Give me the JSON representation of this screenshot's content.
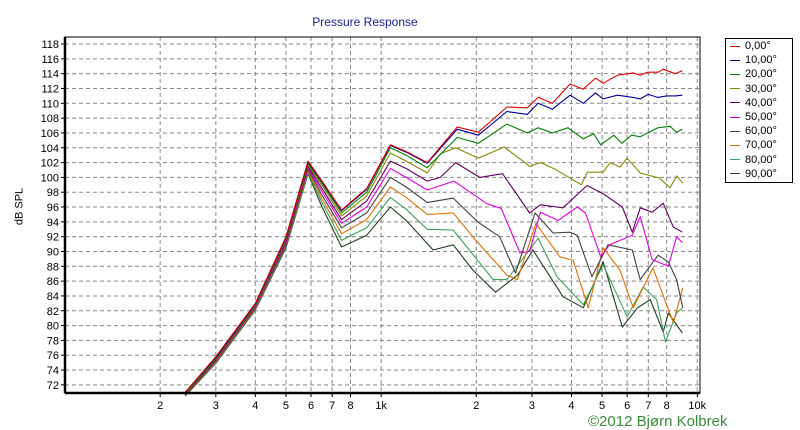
{
  "chart_data": {
    "type": "line",
    "title": "Pressure Response",
    "xlabel": "",
    "ylabel": "dB SPL",
    "xscale": "log",
    "xlim": [
      100,
      10200
    ],
    "ylim": [
      70.9,
      118.95
    ],
    "grid": true,
    "legend_position": "right",
    "yticks": [
      72,
      74,
      76,
      78,
      80,
      82,
      84,
      86,
      88,
      90,
      92,
      94,
      96,
      98,
      100,
      102,
      104,
      106,
      108,
      110,
      112,
      114,
      116,
      118
    ],
    "xticks": [
      {
        "value": 200,
        "label": "2"
      },
      {
        "value": 300,
        "label": "3"
      },
      {
        "value": 400,
        "label": "4"
      },
      {
        "value": 500,
        "label": "5"
      },
      {
        "value": 600,
        "label": "6"
      },
      {
        "value": 700,
        "label": "7"
      },
      {
        "value": 800,
        "label": "8"
      },
      {
        "value": 1000,
        "label": "1k"
      },
      {
        "value": 2000,
        "label": "2"
      },
      {
        "value": 3000,
        "label": "3"
      },
      {
        "value": 4000,
        "label": "4"
      },
      {
        "value": 5000,
        "label": "5"
      },
      {
        "value": 6000,
        "label": "6"
      },
      {
        "value": 7000,
        "label": "7"
      },
      {
        "value": 8000,
        "label": "8"
      },
      {
        "value": 10000,
        "label": "10k"
      }
    ],
    "series": [
      {
        "name": "0,00°",
        "color": "#e00000",
        "points": [
          [
            240,
            71
          ],
          [
            300,
            75.8
          ],
          [
            400,
            83
          ],
          [
            500,
            92
          ],
          [
            587,
            102.2
          ],
          [
            650,
            99.5
          ],
          [
            750,
            95.6
          ],
          [
            900,
            98.5
          ],
          [
            1070,
            104.4
          ],
          [
            1200,
            103.5
          ],
          [
            1400,
            102
          ],
          [
            1740,
            106.8
          ],
          [
            2030,
            106.1
          ],
          [
            2500,
            109.5
          ],
          [
            2900,
            109.4
          ],
          [
            3140,
            110.8
          ],
          [
            3480,
            110
          ],
          [
            3960,
            112.6
          ],
          [
            4360,
            111.9
          ],
          [
            4760,
            113.4
          ],
          [
            5040,
            112.7
          ],
          [
            5590,
            113.8
          ],
          [
            6270,
            114.1
          ],
          [
            6600,
            113.8
          ],
          [
            6950,
            114.2
          ],
          [
            7530,
            114.2
          ],
          [
            7800,
            114.6
          ],
          [
            8510,
            114
          ],
          [
            8970,
            114.4
          ]
        ]
      },
      {
        "name": "10,00°",
        "color": "#0000a0",
        "points": [
          [
            240,
            71
          ],
          [
            300,
            75.7
          ],
          [
            400,
            82.9
          ],
          [
            500,
            91.9
          ],
          [
            587,
            102.1
          ],
          [
            650,
            99.4
          ],
          [
            750,
            95.5
          ],
          [
            900,
            98.4
          ],
          [
            1070,
            104.3
          ],
          [
            1200,
            103.4
          ],
          [
            1400,
            101.9
          ],
          [
            1740,
            106.5
          ],
          [
            2030,
            105.7
          ],
          [
            2500,
            108.9
          ],
          [
            2900,
            108.5
          ],
          [
            3140,
            110
          ],
          [
            3480,
            109.2
          ],
          [
            3960,
            111.1
          ],
          [
            4360,
            110
          ],
          [
            4760,
            111.4
          ],
          [
            5040,
            110.6
          ],
          [
            5590,
            111.1
          ],
          [
            6270,
            110.8
          ],
          [
            6600,
            110.6
          ],
          [
            7000,
            111.2
          ],
          [
            7500,
            110.8
          ],
          [
            8000,
            111
          ],
          [
            8500,
            111
          ],
          [
            8970,
            111.1
          ]
        ]
      },
      {
        "name": "20,00°",
        "color": "#008000",
        "points": [
          [
            240,
            70.9
          ],
          [
            300,
            75.6
          ],
          [
            400,
            82.8
          ],
          [
            500,
            91.8
          ],
          [
            587,
            101.9
          ],
          [
            650,
            99.2
          ],
          [
            750,
            95.2
          ],
          [
            900,
            98
          ],
          [
            1070,
            104
          ],
          [
            1200,
            103
          ],
          [
            1400,
            101.3
          ],
          [
            1740,
            105.4
          ],
          [
            2030,
            104.6
          ],
          [
            2500,
            107.2
          ],
          [
            2900,
            106
          ],
          [
            3140,
            106.7
          ],
          [
            3480,
            106
          ],
          [
            3900,
            106.7
          ],
          [
            4360,
            105.2
          ],
          [
            4700,
            105.9
          ],
          [
            4950,
            104.4
          ],
          [
            5450,
            105.7
          ],
          [
            5770,
            104.6
          ],
          [
            6200,
            105.7
          ],
          [
            6600,
            105.5
          ],
          [
            7500,
            106.7
          ],
          [
            8200,
            106.9
          ],
          [
            8600,
            106.1
          ],
          [
            8970,
            106.5
          ]
        ]
      },
      {
        "name": "30,00°",
        "color": "#8a8a00",
        "points": [
          [
            240,
            70.8
          ],
          [
            300,
            75.5
          ],
          [
            400,
            82.7
          ],
          [
            500,
            91.6
          ],
          [
            587,
            101.7
          ],
          [
            650,
            98.9
          ],
          [
            750,
            94.8
          ],
          [
            900,
            97.5
          ],
          [
            1070,
            103.3
          ],
          [
            1200,
            102.2
          ],
          [
            1400,
            100.6
          ],
          [
            1540,
            103.2
          ],
          [
            1720,
            104
          ],
          [
            2030,
            102.6
          ],
          [
            2450,
            104.1
          ],
          [
            2950,
            101.5
          ],
          [
            3200,
            102
          ],
          [
            3550,
            101.1
          ],
          [
            4300,
            99
          ],
          [
            4490,
            100.7
          ],
          [
            5040,
            100.7
          ],
          [
            5300,
            102
          ],
          [
            5700,
            101.4
          ],
          [
            6000,
            102.6
          ],
          [
            6600,
            100.6
          ],
          [
            7600,
            99.9
          ],
          [
            8200,
            98.6
          ],
          [
            8600,
            100.2
          ],
          [
            9000,
            99.2
          ]
        ]
      },
      {
        "name": "40,00°",
        "color": "#600060",
        "points": [
          [
            240,
            70.7
          ],
          [
            300,
            75.4
          ],
          [
            400,
            82.6
          ],
          [
            500,
            91.4
          ],
          [
            587,
            101.5
          ],
          [
            650,
            98.5
          ],
          [
            750,
            94.3
          ],
          [
            900,
            96.8
          ],
          [
            1070,
            102.2
          ],
          [
            1200,
            101.2
          ],
          [
            1400,
            99.5
          ],
          [
            1540,
            100
          ],
          [
            1720,
            102
          ],
          [
            2050,
            100
          ],
          [
            2420,
            100.5
          ],
          [
            2950,
            95.2
          ],
          [
            3190,
            96.3
          ],
          [
            3760,
            95.9
          ],
          [
            4480,
            98.9
          ],
          [
            5040,
            97.8
          ],
          [
            5790,
            96
          ],
          [
            6230,
            92.6
          ],
          [
            6600,
            95.9
          ],
          [
            7200,
            95.3
          ],
          [
            7800,
            96.5
          ],
          [
            8400,
            93.3
          ],
          [
            8970,
            92.6
          ]
        ]
      },
      {
        "name": "50,00°",
        "color": "#e000e0",
        "points": [
          [
            240,
            70.7
          ],
          [
            300,
            75.3
          ],
          [
            400,
            82.5
          ],
          [
            500,
            91.2
          ],
          [
            587,
            101.3
          ],
          [
            650,
            98.1
          ],
          [
            750,
            93.8
          ],
          [
            900,
            96
          ],
          [
            1070,
            101.2
          ],
          [
            1200,
            100
          ],
          [
            1400,
            98.3
          ],
          [
            1700,
            99.5
          ],
          [
            2150,
            96.5
          ],
          [
            2400,
            95.8
          ],
          [
            2750,
            89.8
          ],
          [
            2950,
            90
          ],
          [
            3190,
            95.3
          ],
          [
            3630,
            94.2
          ],
          [
            4170,
            96
          ],
          [
            4430,
            95.2
          ],
          [
            4950,
            89.3
          ],
          [
            5280,
            90.9
          ],
          [
            6230,
            92.2
          ],
          [
            6600,
            94.7
          ],
          [
            7200,
            88.9
          ],
          [
            8100,
            88
          ],
          [
            8600,
            92
          ],
          [
            8970,
            91.2
          ]
        ]
      },
      {
        "name": "60,00°",
        "color": "#404040",
        "points": [
          [
            240,
            70.6
          ],
          [
            300,
            75.2
          ],
          [
            400,
            82.4
          ],
          [
            500,
            91
          ],
          [
            587,
            101.1
          ],
          [
            650,
            97.6
          ],
          [
            750,
            93.2
          ],
          [
            900,
            95.2
          ],
          [
            1070,
            100
          ],
          [
            1200,
            98.7
          ],
          [
            1400,
            96.6
          ],
          [
            1690,
            97.2
          ],
          [
            2020,
            94
          ],
          [
            2370,
            92
          ],
          [
            2660,
            87.1
          ],
          [
            3070,
            95.2
          ],
          [
            3500,
            92.5
          ],
          [
            3960,
            92.6
          ],
          [
            4170,
            92.2
          ],
          [
            4640,
            86.6
          ],
          [
            5220,
            90.9
          ],
          [
            6230,
            90.2
          ],
          [
            6600,
            86.2
          ],
          [
            7520,
            89.5
          ],
          [
            8100,
            88.6
          ],
          [
            8600,
            86.2
          ],
          [
            9000,
            82.4
          ]
        ]
      },
      {
        "name": "70,00°",
        "color": "#e07000",
        "points": [
          [
            240,
            70.6
          ],
          [
            300,
            75.1
          ],
          [
            400,
            82.3
          ],
          [
            500,
            90.9
          ],
          [
            587,
            100.9
          ],
          [
            650,
            97.1
          ],
          [
            750,
            92.4
          ],
          [
            900,
            94.3
          ],
          [
            1070,
            98.7
          ],
          [
            1200,
            97.3
          ],
          [
            1400,
            95
          ],
          [
            1690,
            95.2
          ],
          [
            1950,
            92
          ],
          [
            2500,
            86.8
          ],
          [
            2700,
            86.2
          ],
          [
            3090,
            93.8
          ],
          [
            3670,
            89.3
          ],
          [
            4050,
            88.8
          ],
          [
            4520,
            82.4
          ],
          [
            5040,
            90.5
          ],
          [
            5690,
            87.5
          ],
          [
            6270,
            82.4
          ],
          [
            7240,
            87.8
          ],
          [
            8400,
            80.4
          ],
          [
            9000,
            85.1
          ]
        ]
      },
      {
        "name": "80,00°",
        "color": "#40a060",
        "points": [
          [
            240,
            70.5
          ],
          [
            300,
            75
          ],
          [
            400,
            82.2
          ],
          [
            500,
            90.7
          ],
          [
            587,
            100.7
          ],
          [
            650,
            96.6
          ],
          [
            750,
            91.5
          ],
          [
            900,
            93.2
          ],
          [
            1070,
            97.3
          ],
          [
            1200,
            95.7
          ],
          [
            1400,
            93
          ],
          [
            1690,
            92.9
          ],
          [
            2260,
            86.2
          ],
          [
            2500,
            86.2
          ],
          [
            3140,
            91.8
          ],
          [
            3600,
            86.6
          ],
          [
            4360,
            82.8
          ],
          [
            5040,
            88.2
          ],
          [
            6000,
            81.2
          ],
          [
            6740,
            85.2
          ],
          [
            7440,
            83.5
          ],
          [
            7930,
            77.8
          ],
          [
            8600,
            81.7
          ],
          [
            8970,
            82.4
          ]
        ]
      },
      {
        "name": "90,00°",
        "color": "#204020",
        "points": [
          [
            240,
            70.5
          ],
          [
            300,
            74.9
          ],
          [
            400,
            82.1
          ],
          [
            500,
            90.5
          ],
          [
            587,
            100.5
          ],
          [
            650,
            96
          ],
          [
            750,
            90.6
          ],
          [
            900,
            92.2
          ],
          [
            1070,
            96
          ],
          [
            1200,
            94.2
          ],
          [
            1460,
            90.2
          ],
          [
            1690,
            90.9
          ],
          [
            1950,
            87.5
          ],
          [
            2300,
            84.5
          ],
          [
            2700,
            86.8
          ],
          [
            3020,
            90.2
          ],
          [
            3760,
            83.9
          ],
          [
            4360,
            82.4
          ],
          [
            5040,
            88.6
          ],
          [
            5790,
            79.8
          ],
          [
            6470,
            82.4
          ],
          [
            7100,
            83.5
          ],
          [
            7800,
            79.1
          ],
          [
            8100,
            81.7
          ],
          [
            8970,
            79
          ]
        ]
      }
    ]
  },
  "copyright": "©2012 Bjørn Kolbrek"
}
